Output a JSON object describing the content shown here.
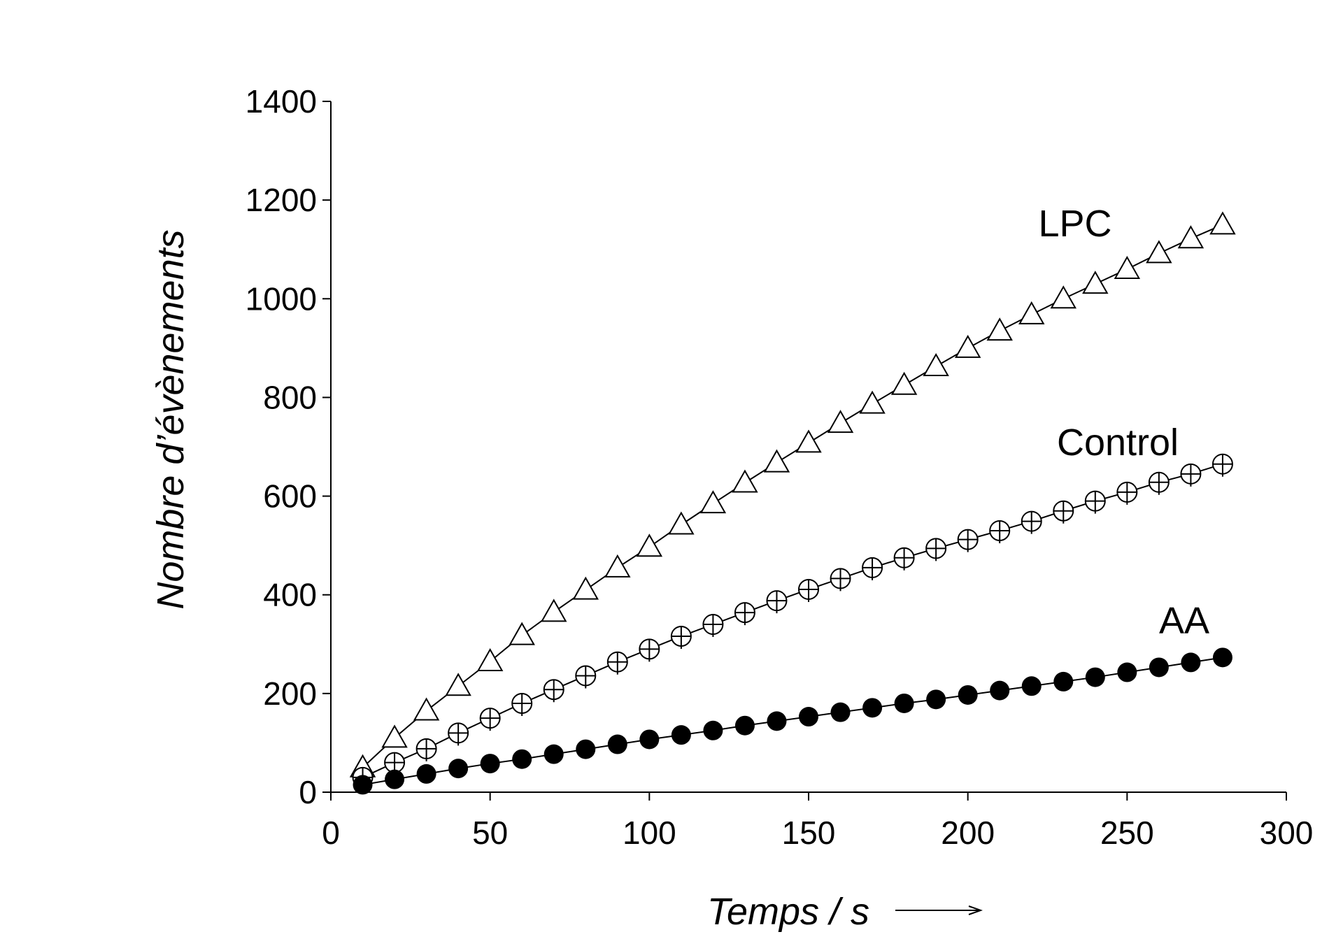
{
  "chart_data": {
    "type": "line",
    "title": "",
    "xlabel": "Temps / s",
    "ylabel": "Nombre d’évènements",
    "xlim": [
      0,
      300
    ],
    "ylim": [
      0,
      1400
    ],
    "xticks": [
      0,
      50,
      100,
      150,
      200,
      250,
      300
    ],
    "yticks": [
      0,
      200,
      400,
      600,
      800,
      1000,
      1200,
      1400
    ],
    "grid": false,
    "x": [
      10,
      20,
      30,
      40,
      50,
      60,
      70,
      80,
      90,
      100,
      110,
      120,
      130,
      140,
      150,
      160,
      170,
      180,
      190,
      200,
      210,
      220,
      230,
      240,
      250,
      260,
      270,
      280
    ],
    "series": [
      {
        "name": "LPC",
        "marker": "open-triangle",
        "values": [
          50,
          110,
          165,
          215,
          265,
          318,
          365,
          410,
          455,
          497,
          542,
          585,
          627,
          668,
          708,
          748,
          787,
          825,
          863,
          900,
          935,
          968,
          1000,
          1030,
          1060,
          1092,
          1122,
          1150
        ]
      },
      {
        "name": "Control",
        "marker": "circle-plus",
        "values": [
          30,
          60,
          88,
          120,
          150,
          180,
          208,
          236,
          264,
          290,
          316,
          340,
          364,
          388,
          411,
          433,
          455,
          475,
          494,
          512,
          530,
          549,
          570,
          590,
          608,
          628,
          645,
          665
        ]
      },
      {
        "name": "AA",
        "marker": "filled-circle",
        "values": [
          15,
          26,
          37,
          48,
          58,
          67,
          77,
          87,
          97,
          107,
          116,
          125,
          135,
          144,
          153,
          162,
          171,
          180,
          188,
          197,
          206,
          215,
          224,
          233,
          243,
          253,
          263,
          273
        ]
      }
    ]
  }
}
